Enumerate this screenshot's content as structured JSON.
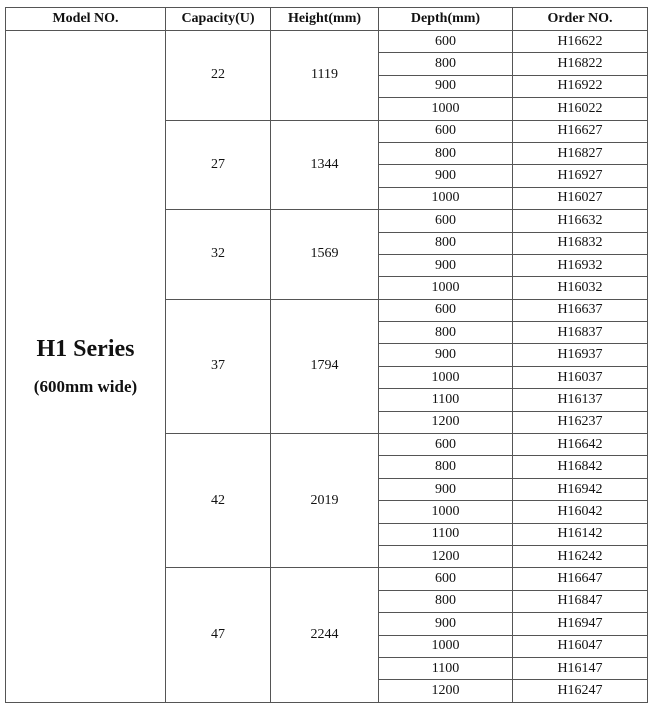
{
  "headers": [
    "Model NO.",
    "Capacity(U)",
    "Height(mm)",
    "Depth(mm)",
    "Order NO."
  ],
  "model": {
    "series": "H1 Series",
    "width": "(600mm wide)"
  },
  "groups": [
    {
      "capacity": "22",
      "height": "1119",
      "rows": [
        [
          "600",
          "H16622"
        ],
        [
          "800",
          "H16822"
        ],
        [
          "900",
          "H16922"
        ],
        [
          "1000",
          "H16022"
        ]
      ]
    },
    {
      "capacity": "27",
      "height": "1344",
      "rows": [
        [
          "600",
          "H16627"
        ],
        [
          "800",
          "H16827"
        ],
        [
          "900",
          "H16927"
        ],
        [
          "1000",
          "H16027"
        ]
      ]
    },
    {
      "capacity": "32",
      "height": "1569",
      "rows": [
        [
          "600",
          "H16632"
        ],
        [
          "800",
          "H16832"
        ],
        [
          "900",
          "H16932"
        ],
        [
          "1000",
          "H16032"
        ]
      ]
    },
    {
      "capacity": "37",
      "height": "1794",
      "rows": [
        [
          "600",
          "H16637"
        ],
        [
          "800",
          "H16837"
        ],
        [
          "900",
          "H16937"
        ],
        [
          "1000",
          "H16037"
        ],
        [
          "1100",
          "H16137"
        ],
        [
          "1200",
          "H16237"
        ]
      ]
    },
    {
      "capacity": "42",
      "height": "2019",
      "rows": [
        [
          "600",
          "H16642"
        ],
        [
          "800",
          "H16842"
        ],
        [
          "900",
          "H16942"
        ],
        [
          "1000",
          "H16042"
        ],
        [
          "1100",
          "H16142"
        ],
        [
          "1200",
          "H16242"
        ]
      ]
    },
    {
      "capacity": "47",
      "height": "2244",
      "rows": [
        [
          "600",
          "H16647"
        ],
        [
          "800",
          "H16847"
        ],
        [
          "900",
          "H16947"
        ],
        [
          "1000",
          "H16047"
        ],
        [
          "1100",
          "H16147"
        ],
        [
          "1200",
          "H16247"
        ]
      ]
    }
  ]
}
